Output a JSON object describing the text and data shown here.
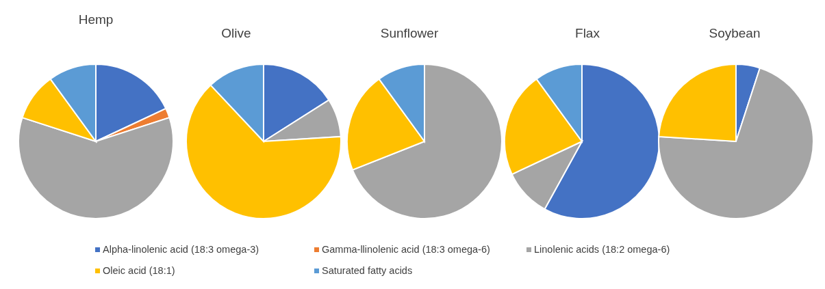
{
  "chart_data": [
    {
      "type": "pie",
      "title": "Hemp",
      "categories": [
        "Alpha-linolenic acid (18:3 omega-3)",
        "Gamma-llinolenic acid (18:3 omega-6)",
        "Linolenic acids (18:2 omega-6)",
        "Oleic acid (18:1)",
        "Saturated fatty acids"
      ],
      "values": [
        18,
        2,
        60,
        10,
        10
      ],
      "colors": [
        "#4472c4",
        "#ed7d31",
        "#a5a5a5",
        "#ffc000",
        "#5b9bd5"
      ],
      "legend": "bottom"
    },
    {
      "type": "pie",
      "title": "Olive",
      "values": [
        16,
        null,
        8,
        64,
        12
      ],
      "colors": [
        "#4472c4",
        null,
        "#a5a5a5",
        "#ffc000",
        "#5b9bd5"
      ]
    },
    {
      "type": "pie",
      "title": "Sunflower",
      "values": [
        null,
        null,
        69,
        21,
        10
      ],
      "colors": [
        null,
        null,
        "#a5a5a5",
        "#ffc000",
        "#5b9bd5"
      ]
    },
    {
      "type": "pie",
      "title": "Flax",
      "values": [
        58,
        null,
        10,
        22,
        10
      ],
      "colors": [
        "#4472c4",
        null,
        "#a5a5a5",
        "#ffc000",
        "#5b9bd5"
      ]
    },
    {
      "type": "pie",
      "title": "Soybean",
      "values": [
        5,
        null,
        71,
        24,
        null
      ],
      "colors": [
        "#4472c4",
        null,
        "#a5a5a5",
        "#ffc000",
        null
      ]
    }
  ]
}
